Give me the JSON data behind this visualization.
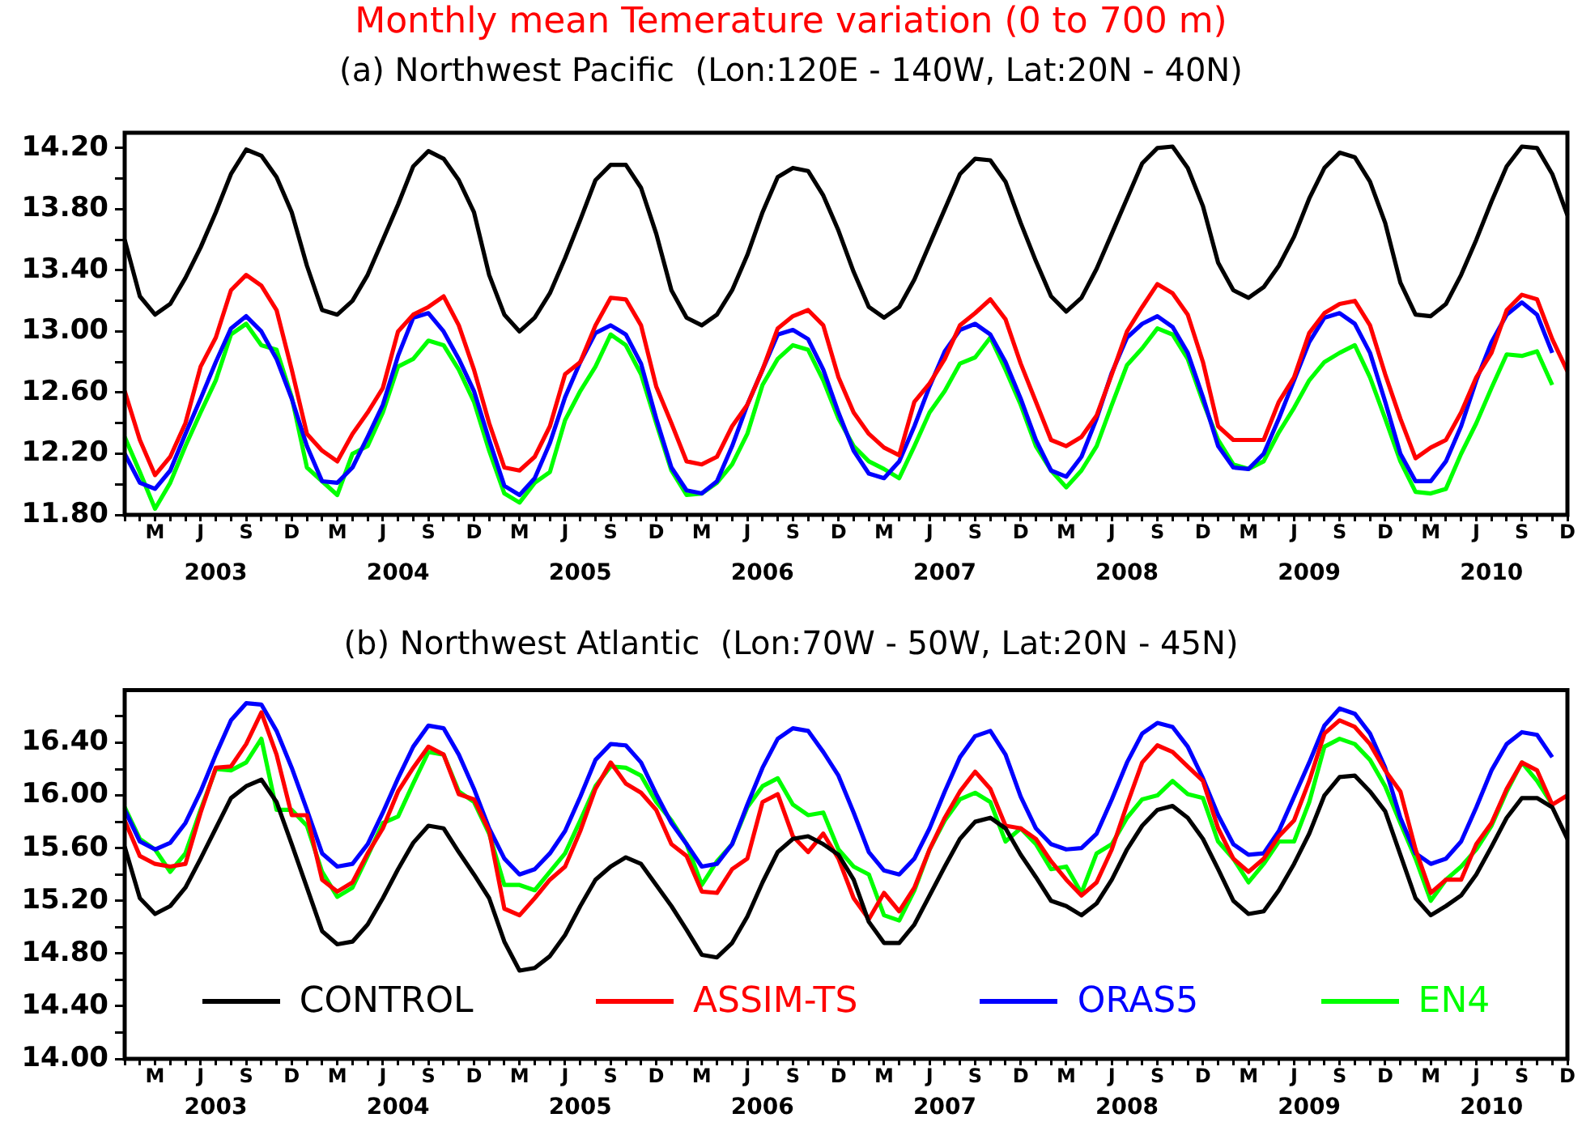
{
  "chart_data": [
    {
      "type": "line",
      "title": "Monthly mean Temerature variation (0 to 700 m)",
      "subtitle": "(a) Northwest Pacific  (Lon:120E - 140W, Lat:20N - 40N)",
      "categories": [
        null,
        null,
        "M",
        null,
        null,
        "J",
        null,
        null,
        "S",
        null,
        null,
        "D",
        null,
        null,
        "M",
        null,
        null,
        "J",
        null,
        null,
        "S",
        null,
        null,
        "D",
        null,
        null,
        "M",
        null,
        null,
        "J",
        null,
        null,
        "S",
        null,
        null,
        "D",
        null,
        null,
        "M",
        null,
        null,
        "J",
        null,
        null,
        "S",
        null,
        null,
        "D",
        null,
        null,
        "M",
        null,
        null,
        "J",
        null,
        null,
        "S",
        null,
        null,
        "D",
        null,
        null,
        "M",
        null,
        null,
        "J",
        null,
        null,
        "S",
        null,
        null,
        "D",
        null,
        null,
        "M",
        null,
        null,
        "J",
        null,
        null,
        "S",
        null,
        null,
        "D",
        null,
        null,
        "M",
        null,
        null,
        "J",
        null,
        null,
        "S",
        null,
        null,
        "D"
      ],
      "x2lim": [
        2003,
        2010.9167
      ],
      "x2ticks": [
        {
          "value": 2003.5,
          "label": "2003"
        },
        {
          "value": 2004.5,
          "label": "2004"
        },
        {
          "value": 2005.5,
          "label": "2005"
        },
        {
          "value": 2006.5,
          "label": "2006"
        },
        {
          "value": 2007.5,
          "label": "2007"
        },
        {
          "value": 2008.5,
          "label": "2008"
        },
        {
          "value": 2009.5,
          "label": "2009"
        },
        {
          "value": 2010.5,
          "label": "2010"
        }
      ],
      "ylim": [
        11.8,
        14.3
      ],
      "yticks": [
        {
          "value": 11.8,
          "label": "11.80"
        },
        {
          "value": 12.0,
          "label": null
        },
        {
          "value": 12.2,
          "label": "12.20"
        },
        {
          "value": 12.4,
          "label": null
        },
        {
          "value": 12.6,
          "label": "12.60"
        },
        {
          "value": 12.8,
          "label": null
        },
        {
          "value": 13.0,
          "label": "13.00"
        },
        {
          "value": 13.2,
          "label": null
        },
        {
          "value": 13.4,
          "label": "13.40"
        },
        {
          "value": 13.6,
          "label": null
        },
        {
          "value": 13.8,
          "label": "13.80"
        },
        {
          "value": 14.0,
          "label": null
        },
        {
          "value": 14.2,
          "label": "14.20"
        }
      ],
      "marker": "none",
      "series": [
        {
          "color": "#000000",
          "values": [
            13.6,
            13.23,
            13.11,
            13.18,
            13.35,
            13.55,
            13.78,
            14.03,
            14.19,
            14.15,
            14.01,
            13.78,
            13.43,
            13.14,
            13.11,
            13.2,
            13.37,
            13.6,
            13.83,
            14.08,
            14.18,
            14.13,
            13.99,
            13.78,
            13.37,
            13.11,
            13.0,
            13.09,
            13.25,
            13.48,
            13.73,
            13.99,
            14.09,
            14.09,
            13.94,
            13.64,
            13.27,
            13.09,
            13.04,
            13.11,
            13.27,
            13.5,
            13.78,
            14.01,
            14.07,
            14.05,
            13.89,
            13.66,
            13.39,
            13.16,
            13.09,
            13.16,
            13.34,
            13.57,
            13.8,
            14.03,
            14.13,
            14.12,
            13.98,
            13.71,
            13.46,
            13.23,
            13.13,
            13.22,
            13.41,
            13.64,
            13.87,
            14.1,
            14.2,
            14.21,
            14.07,
            13.82,
            13.45,
            13.27,
            13.22,
            13.29,
            13.43,
            13.62,
            13.87,
            14.07,
            14.17,
            14.14,
            13.98,
            13.71,
            13.32,
            13.11,
            13.1,
            13.18,
            13.37,
            13.6,
            13.85,
            14.08,
            14.21,
            14.2,
            14.03,
            13.76
          ]
        },
        {
          "color": "#ff0000",
          "values": [
            12.61,
            12.29,
            12.06,
            12.18,
            12.4,
            12.77,
            12.96,
            13.27,
            13.37,
            13.3,
            13.14,
            12.75,
            12.33,
            12.22,
            12.15,
            12.33,
            12.47,
            12.63,
            13.0,
            13.11,
            13.16,
            13.23,
            13.04,
            12.75,
            12.4,
            12.11,
            12.09,
            12.18,
            12.38,
            12.72,
            12.8,
            13.04,
            13.22,
            13.21,
            13.04,
            12.64,
            12.4,
            12.15,
            12.13,
            12.18,
            12.38,
            12.52,
            12.75,
            13.02,
            13.1,
            13.14,
            13.04,
            12.7,
            12.47,
            12.33,
            12.24,
            12.19,
            12.54,
            12.66,
            12.82,
            13.04,
            13.12,
            13.21,
            13.08,
            12.79,
            12.54,
            12.29,
            12.25,
            12.31,
            12.45,
            12.72,
            13.0,
            13.16,
            13.31,
            13.25,
            13.11,
            12.8,
            12.38,
            12.29,
            12.29,
            12.29,
            12.54,
            12.7,
            12.99,
            13.12,
            13.18,
            13.2,
            13.04,
            12.72,
            12.43,
            12.17,
            12.24,
            12.29,
            12.47,
            12.7,
            12.86,
            13.14,
            13.24,
            13.21,
            12.95,
            12.74
          ]
        },
        {
          "color": "#0000ff",
          "values": [
            12.2,
            12.01,
            11.97,
            12.09,
            12.33,
            12.56,
            12.8,
            13.02,
            13.1,
            13.0,
            12.82,
            12.56,
            12.25,
            12.02,
            12.01,
            12.11,
            12.31,
            12.52,
            12.84,
            13.09,
            13.12,
            13.0,
            12.82,
            12.61,
            12.29,
            11.99,
            11.93,
            12.04,
            12.27,
            12.57,
            12.8,
            12.99,
            13.04,
            12.98,
            12.79,
            12.43,
            12.11,
            11.96,
            11.94,
            12.02,
            12.25,
            12.52,
            12.75,
            12.98,
            13.01,
            12.95,
            12.75,
            12.47,
            12.22,
            12.07,
            12.04,
            12.15,
            12.38,
            12.64,
            12.87,
            13.01,
            13.05,
            12.98,
            12.8,
            12.56,
            12.29,
            12.09,
            12.05,
            12.18,
            12.43,
            12.73,
            12.96,
            13.05,
            13.1,
            13.03,
            12.86,
            12.57,
            12.25,
            12.11,
            12.1,
            12.2,
            12.43,
            12.68,
            12.93,
            13.09,
            13.12,
            13.05,
            12.86,
            12.54,
            12.2,
            12.02,
            12.02,
            12.15,
            12.38,
            12.68,
            12.93,
            13.11,
            13.19,
            13.11,
            12.86,
            null
          ]
        },
        {
          "color": "#00ff00",
          "values": [
            12.31,
            12.08,
            11.84,
            12.01,
            12.25,
            12.47,
            12.68,
            12.98,
            13.05,
            12.91,
            12.88,
            12.57,
            12.11,
            12.02,
            11.93,
            12.2,
            12.25,
            12.47,
            12.77,
            12.82,
            12.94,
            12.91,
            12.75,
            12.54,
            12.22,
            11.94,
            11.88,
            12.01,
            12.08,
            12.42,
            12.61,
            12.77,
            12.98,
            12.91,
            12.72,
            12.4,
            12.09,
            11.93,
            11.94,
            12.01,
            12.13,
            12.33,
            12.65,
            12.82,
            12.91,
            12.88,
            12.68,
            12.43,
            12.25,
            12.15,
            12.1,
            12.04,
            12.25,
            12.47,
            12.61,
            12.79,
            12.83,
            12.96,
            12.75,
            12.52,
            12.25,
            12.09,
            11.98,
            12.09,
            12.25,
            12.52,
            12.78,
            12.89,
            13.02,
            12.98,
            12.82,
            12.54,
            12.29,
            12.13,
            12.1,
            12.15,
            12.34,
            12.5,
            12.68,
            12.8,
            12.86,
            12.91,
            12.7,
            12.43,
            12.15,
            11.95,
            11.94,
            11.97,
            12.2,
            12.4,
            12.63,
            12.85,
            12.84,
            12.87,
            12.65,
            null
          ]
        }
      ]
    },
    {
      "type": "line",
      "title": "(b) Northwest Atlantic  (Lon:70W - 50W, Lat:20N - 45N)",
      "categories": [
        null,
        null,
        "M",
        null,
        null,
        "J",
        null,
        null,
        "S",
        null,
        null,
        "D",
        null,
        null,
        "M",
        null,
        null,
        "J",
        null,
        null,
        "S",
        null,
        null,
        "D",
        null,
        null,
        "M",
        null,
        null,
        "J",
        null,
        null,
        "S",
        null,
        null,
        "D",
        null,
        null,
        "M",
        null,
        null,
        "J",
        null,
        null,
        "S",
        null,
        null,
        "D",
        null,
        null,
        "M",
        null,
        null,
        "J",
        null,
        null,
        "S",
        null,
        null,
        "D",
        null,
        null,
        "M",
        null,
        null,
        "J",
        null,
        null,
        "S",
        null,
        null,
        "D",
        null,
        null,
        "M",
        null,
        null,
        "J",
        null,
        null,
        "S",
        null,
        null,
        "D",
        null,
        null,
        "M",
        null,
        null,
        "J",
        null,
        null,
        "S",
        null,
        null,
        "D"
      ],
      "x2lim": [
        2003,
        2010.9167
      ],
      "x2ticks": [
        {
          "value": 2003.5,
          "label": "2003"
        },
        {
          "value": 2004.5,
          "label": "2004"
        },
        {
          "value": 2005.5,
          "label": "2005"
        },
        {
          "value": 2006.5,
          "label": "2006"
        },
        {
          "value": 2007.5,
          "label": "2007"
        },
        {
          "value": 2008.5,
          "label": "2008"
        },
        {
          "value": 2009.5,
          "label": "2009"
        },
        {
          "value": 2010.5,
          "label": "2010"
        }
      ],
      "ylim": [
        14.0,
        16.8
      ],
      "yticks": [
        {
          "value": 14.0,
          "label": "14.00"
        },
        {
          "value": 14.2,
          "label": null
        },
        {
          "value": 14.4,
          "label": "14.40"
        },
        {
          "value": 14.6,
          "label": null
        },
        {
          "value": 14.8,
          "label": "14.80"
        },
        {
          "value": 15.0,
          "label": null
        },
        {
          "value": 15.2,
          "label": "15.20"
        },
        {
          "value": 15.4,
          "label": null
        },
        {
          "value": 15.6,
          "label": "15.60"
        },
        {
          "value": 15.8,
          "label": null
        },
        {
          "value": 16.0,
          "label": "16.00"
        },
        {
          "value": 16.2,
          "label": null
        },
        {
          "value": 16.4,
          "label": "16.40"
        },
        {
          "value": 16.6,
          "label": null
        }
      ],
      "marker": "none",
      "legend": "bottom",
      "series": [
        {
          "name": "CONTROL",
          "color": "#000000",
          "values": [
            15.61,
            15.22,
            15.1,
            15.16,
            15.3,
            15.52,
            15.75,
            15.98,
            16.07,
            16.12,
            15.95,
            15.63,
            15.3,
            14.97,
            14.87,
            14.89,
            15.02,
            15.22,
            15.44,
            15.64,
            15.77,
            15.75,
            15.57,
            15.4,
            15.22,
            14.89,
            14.67,
            14.69,
            14.78,
            14.94,
            15.16,
            15.36,
            15.46,
            15.53,
            15.48,
            15.32,
            15.16,
            14.98,
            14.79,
            14.77,
            14.88,
            15.08,
            15.34,
            15.57,
            15.67,
            15.69,
            15.63,
            15.55,
            15.36,
            15.04,
            14.88,
            14.88,
            15.02,
            15.24,
            15.46,
            15.67,
            15.8,
            15.83,
            15.75,
            15.55,
            15.38,
            15.2,
            15.16,
            15.09,
            15.18,
            15.36,
            15.59,
            15.77,
            15.89,
            15.92,
            15.83,
            15.67,
            15.44,
            15.2,
            15.1,
            15.12,
            15.28,
            15.48,
            15.71,
            16.0,
            16.14,
            16.15,
            16.03,
            15.88,
            15.55,
            15.22,
            15.09,
            15.16,
            15.24,
            15.4,
            15.61,
            15.83,
            15.98,
            15.98,
            15.91,
            15.67
          ]
        },
        {
          "name": "ASSIM-TS",
          "color": "#ff0000",
          "values": [
            15.81,
            15.54,
            15.48,
            15.46,
            15.48,
            15.87,
            16.21,
            16.22,
            16.39,
            16.63,
            16.31,
            15.85,
            15.85,
            15.36,
            15.27,
            15.34,
            15.56,
            15.75,
            16.03,
            16.21,
            16.37,
            16.31,
            16.01,
            15.97,
            15.73,
            15.14,
            15.09,
            15.22,
            15.36,
            15.46,
            15.73,
            16.05,
            16.25,
            16.09,
            16.02,
            15.89,
            15.63,
            15.54,
            15.27,
            15.26,
            15.44,
            15.52,
            15.95,
            16.01,
            15.69,
            15.57,
            15.71,
            15.52,
            15.22,
            15.06,
            15.26,
            15.12,
            15.3,
            15.59,
            15.83,
            16.03,
            16.18,
            16.05,
            15.77,
            15.75,
            15.67,
            15.5,
            15.36,
            15.24,
            15.34,
            15.59,
            15.93,
            16.25,
            16.38,
            16.33,
            16.22,
            16.11,
            15.75,
            15.52,
            15.42,
            15.52,
            15.69,
            15.81,
            16.11,
            16.47,
            16.57,
            16.52,
            16.39,
            16.19,
            16.03,
            15.59,
            15.26,
            15.36,
            15.36,
            15.63,
            15.79,
            16.05,
            16.25,
            16.19,
            15.93,
            16.0
          ]
        },
        {
          "name": "ORAS5",
          "color": "#0000ff",
          "values": [
            15.89,
            15.65,
            15.59,
            15.64,
            15.79,
            16.03,
            16.31,
            16.57,
            16.7,
            16.69,
            16.49,
            16.21,
            15.89,
            15.56,
            15.46,
            15.48,
            15.63,
            15.87,
            16.13,
            16.37,
            16.53,
            16.51,
            16.31,
            16.05,
            15.75,
            15.52,
            15.4,
            15.44,
            15.56,
            15.73,
            15.99,
            16.27,
            16.39,
            16.38,
            16.25,
            16.01,
            15.79,
            15.63,
            15.46,
            15.48,
            15.63,
            15.93,
            16.21,
            16.43,
            16.51,
            16.49,
            16.33,
            16.15,
            15.87,
            15.57,
            15.43,
            15.4,
            15.52,
            15.75,
            16.03,
            16.29,
            16.45,
            16.49,
            16.31,
            15.99,
            15.75,
            15.63,
            15.59,
            15.6,
            15.71,
            15.97,
            16.25,
            16.47,
            16.55,
            16.52,
            16.37,
            16.13,
            15.85,
            15.63,
            15.55,
            15.56,
            15.73,
            15.99,
            16.25,
            16.53,
            16.66,
            16.62,
            16.47,
            16.21,
            15.83,
            15.56,
            15.48,
            15.52,
            15.65,
            15.91,
            16.19,
            16.39,
            16.48,
            16.46,
            16.29,
            null
          ]
        },
        {
          "name": "EN4",
          "color": "#00ff00",
          "values": [
            15.91,
            15.67,
            15.59,
            15.42,
            15.56,
            15.89,
            16.2,
            16.19,
            16.25,
            16.43,
            15.89,
            15.89,
            15.77,
            15.42,
            15.23,
            15.3,
            15.54,
            15.79,
            15.84,
            16.09,
            16.33,
            16.31,
            16.03,
            15.95,
            15.71,
            15.32,
            15.32,
            15.28,
            15.42,
            15.56,
            15.81,
            16.07,
            16.22,
            16.21,
            16.15,
            15.95,
            15.81,
            15.63,
            15.32,
            15.5,
            15.63,
            15.91,
            16.07,
            16.13,
            15.93,
            15.85,
            15.87,
            15.59,
            15.46,
            15.4,
            15.09,
            15.05,
            15.28,
            15.59,
            15.81,
            15.97,
            16.02,
            15.95,
            15.65,
            15.75,
            15.63,
            15.44,
            15.46,
            15.26,
            15.56,
            15.63,
            15.83,
            15.97,
            16.0,
            16.11,
            16.01,
            15.98,
            15.65,
            15.52,
            15.34,
            15.48,
            15.65,
            15.65,
            15.95,
            16.37,
            16.43,
            16.39,
            16.27,
            16.07,
            15.79,
            15.52,
            15.2,
            15.36,
            15.46,
            15.59,
            15.77,
            16.03,
            16.25,
            16.11,
            15.93,
            null
          ]
        }
      ]
    }
  ]
}
